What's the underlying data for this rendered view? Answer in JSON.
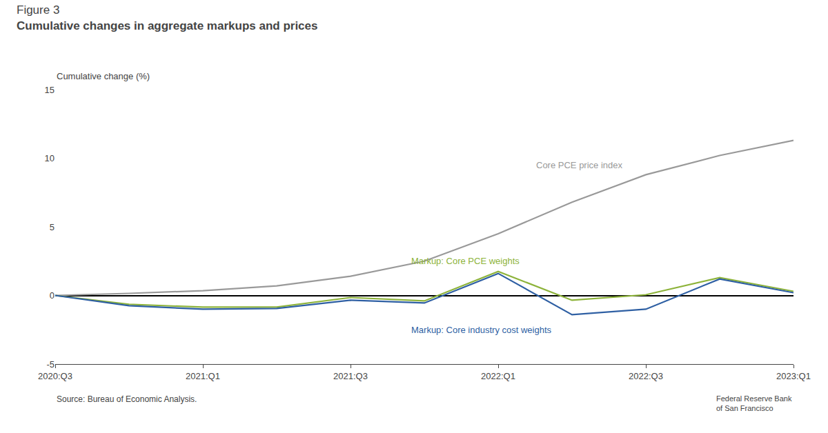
{
  "chart_data": {
    "type": "line",
    "subtitle": "Figure 3",
    "title": "Cumulative changes in aggregate markups and prices",
    "ylabel": "Cumulative change (%)",
    "annotations": [
      "Source: Bureau of Economic Analysis.",
      "Federal Reserve Bank\nof San Francisco"
    ],
    "categories": [
      "2020:Q3",
      null,
      "2021:Q1",
      null,
      "2021:Q3",
      null,
      "2022:Q1",
      null,
      "2022:Q3",
      null,
      "2023:Q1"
    ],
    "series": [
      {
        "name": "Core PCE price index",
        "color": "#999999",
        "values": [
          0.0,
          0.15,
          0.35,
          0.7,
          1.4,
          2.5,
          4.5,
          6.8,
          8.8,
          10.2,
          11.3
        ]
      },
      {
        "name": "Markup: Core PCE weights",
        "color": "#8db33a",
        "values": [
          0.0,
          -0.65,
          -0.85,
          -0.85,
          -0.15,
          -0.4,
          1.75,
          -0.35,
          0.05,
          1.3,
          0.3
        ]
      },
      {
        "name": "Markup: Core industry cost weights",
        "color": "#2e5fa3",
        "values": [
          0.0,
          -0.75,
          -1.0,
          -0.95,
          -0.35,
          -0.55,
          1.6,
          -1.4,
          -1.0,
          1.2,
          0.2
        ]
      }
    ],
    "ylim": [
      -5,
      15
    ],
    "yticks": [
      -5,
      0,
      5,
      10,
      15
    ],
    "grid": false
  }
}
